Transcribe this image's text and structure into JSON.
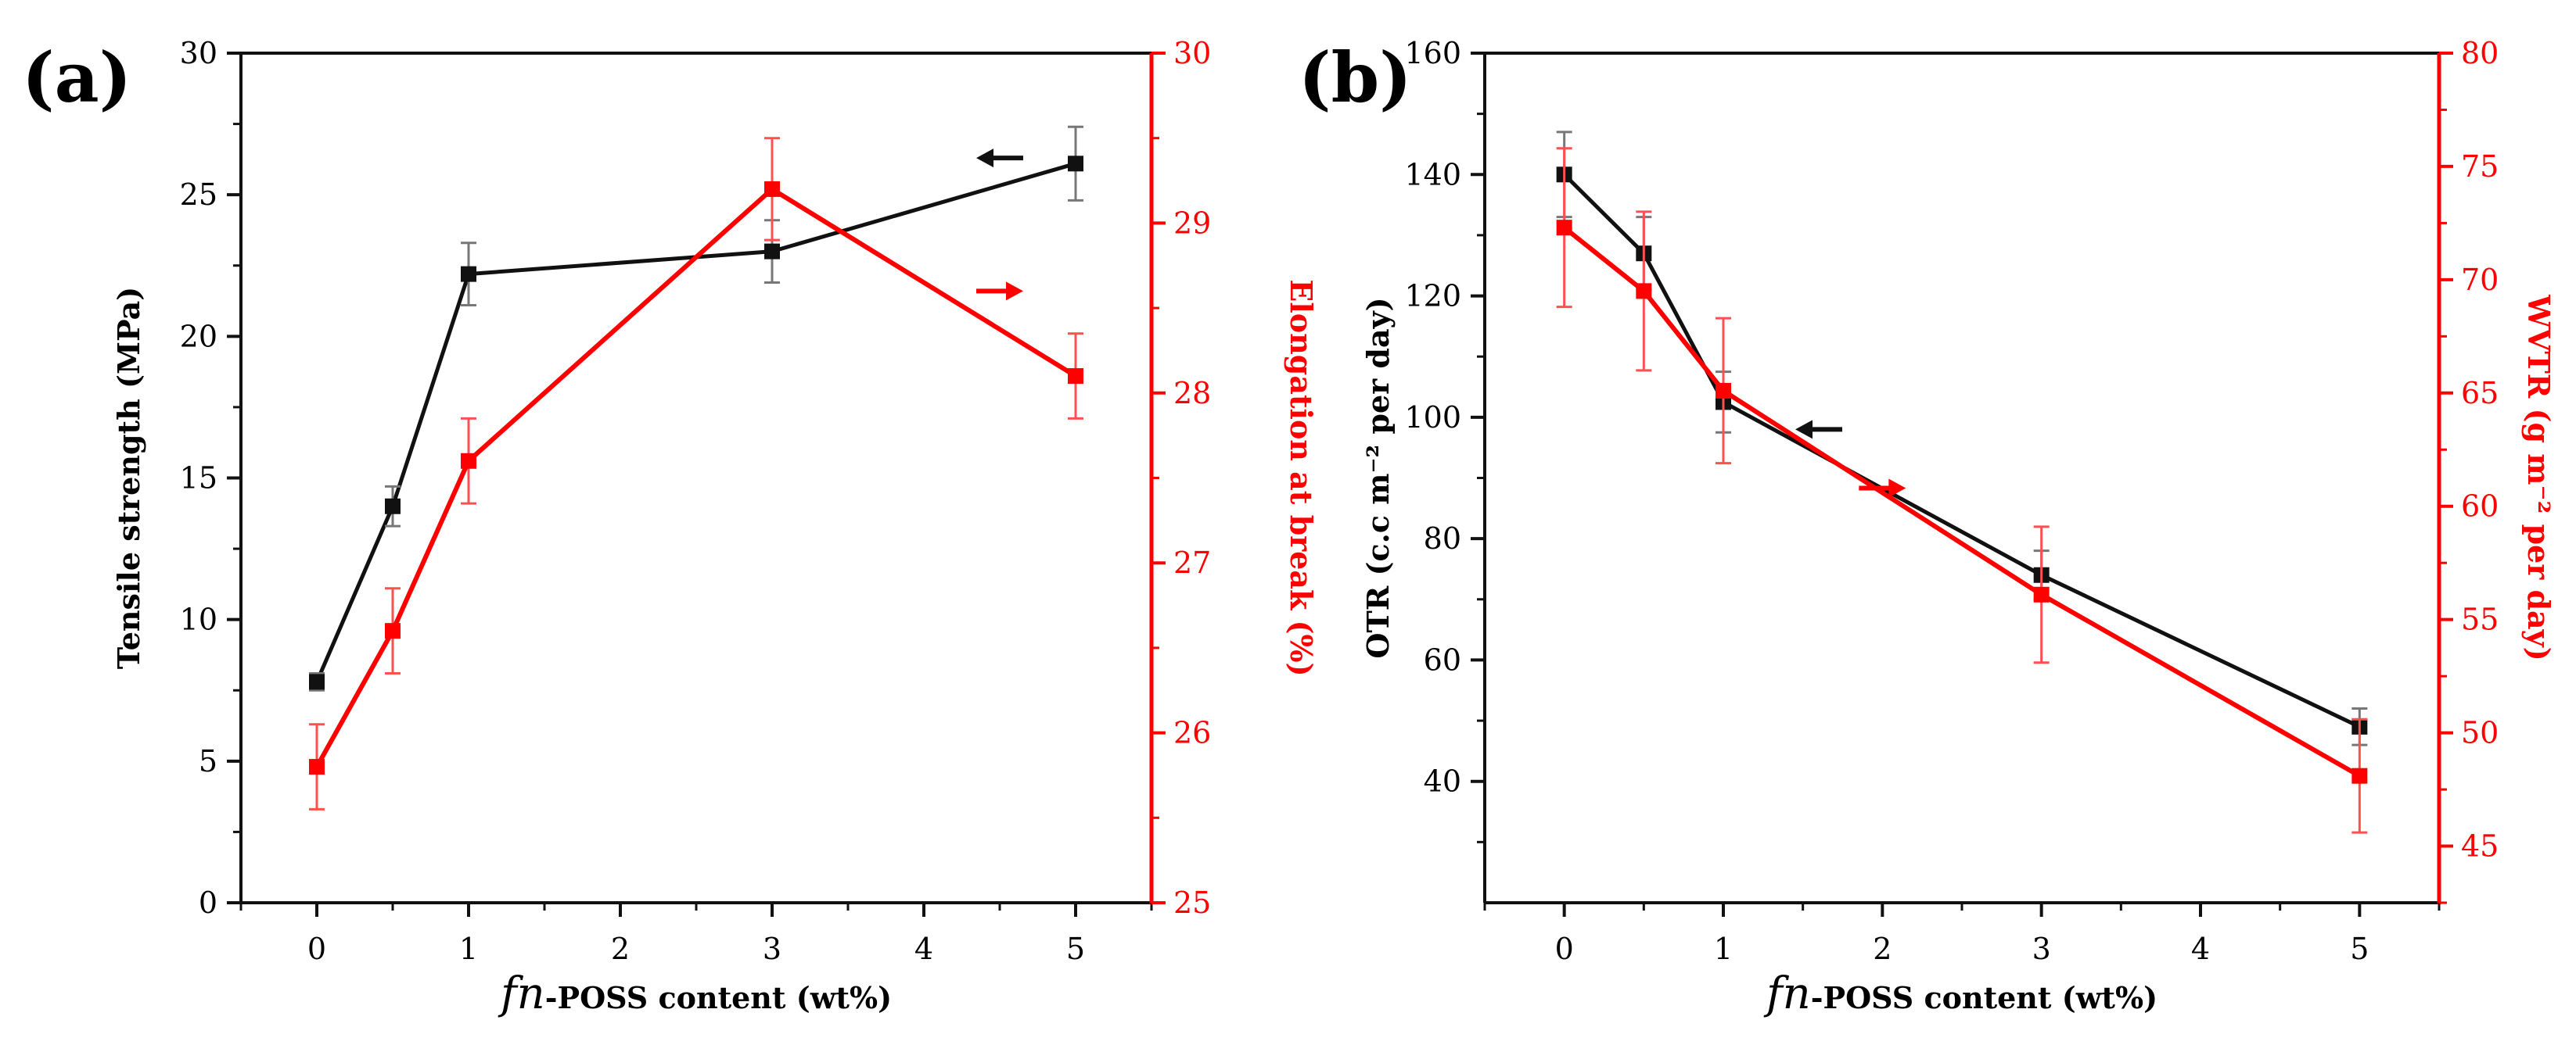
{
  "chart_data": [
    {
      "type": "line",
      "panel_label": "(a)",
      "x": [
        0,
        0.5,
        1,
        3,
        5
      ],
      "xlim": [
        -0.5,
        5.5
      ],
      "xticks": [
        "0",
        "1",
        "2",
        "3",
        "4",
        "5"
      ],
      "xlabel_italic": "fn",
      "xlabel_rest": "-POSS content (wt%)",
      "ylabel_left": "Tensile strength (MPa)",
      "ylabel_right": "Elongation at break (%)",
      "ylim_left": [
        0,
        30
      ],
      "ylim_right": [
        25,
        30
      ],
      "yticks_left": [
        "0",
        "5",
        "10",
        "15",
        "20",
        "25",
        "30"
      ],
      "yticks_right": [
        "25",
        "26",
        "27",
        "28",
        "29",
        "30"
      ],
      "series": [
        {
          "name": "Tensile strength",
          "axis": "left",
          "color": "#111111",
          "values": [
            7.8,
            14.0,
            22.2,
            23.0,
            26.1
          ],
          "errors": [
            0.3,
            0.7,
            1.1,
            1.1,
            1.3
          ]
        },
        {
          "name": "Elongation at break",
          "axis": "right",
          "color": "#ff0000",
          "values": [
            25.8,
            26.6,
            27.6,
            29.2,
            28.1
          ],
          "errors": [
            0.25,
            0.25,
            0.25,
            0.3,
            0.25
          ]
        }
      ],
      "arrows": [
        {
          "series": "Tensile strength",
          "direction": "left",
          "at_x": 4.5,
          "at_y": 26.3
        },
        {
          "series": "Elongation at break",
          "direction": "right",
          "at_x": 4.5,
          "at_y": 28.6
        }
      ]
    },
    {
      "type": "line",
      "panel_label": "(b)",
      "x": [
        0,
        0.5,
        1,
        3,
        5
      ],
      "xlim": [
        -0.5,
        5.5
      ],
      "xticks": [
        "0",
        "1",
        "2",
        "3",
        "4",
        "5"
      ],
      "xlabel_italic": "fn",
      "xlabel_rest": "-POSS content (wt%)",
      "ylabel_left": "OTR (c.c m⁻² per day)",
      "ylabel_right": "WVTR (g m⁻² per day)",
      "ylim_left": [
        20,
        160
      ],
      "ylim_right": [
        42.5,
        80
      ],
      "yticks_left": [
        "40",
        "60",
        "80",
        "100",
        "120",
        "140",
        "160"
      ],
      "yticks_right": [
        "45",
        "50",
        "55",
        "60",
        "65",
        "70",
        "75",
        "80"
      ],
      "series": [
        {
          "name": "OTR",
          "axis": "left",
          "color": "#111111",
          "values": [
            140,
            127,
            102.5,
            74,
            49
          ],
          "errors": [
            7,
            6,
            5,
            4,
            3
          ]
        },
        {
          "name": "WVTR",
          "axis": "right",
          "color": "#ff0000",
          "values": [
            72.3,
            69.5,
            65.1,
            56.1,
            48.1
          ],
          "errors": [
            3.5,
            3.5,
            3.2,
            3,
            2.5
          ]
        }
      ],
      "arrows": [
        {
          "series": "OTR",
          "direction": "left",
          "at_x": 1.6,
          "at_y": 98
        },
        {
          "series": "WVTR",
          "direction": "right",
          "at_x": 2.0,
          "at_y": 60.8
        }
      ]
    }
  ]
}
